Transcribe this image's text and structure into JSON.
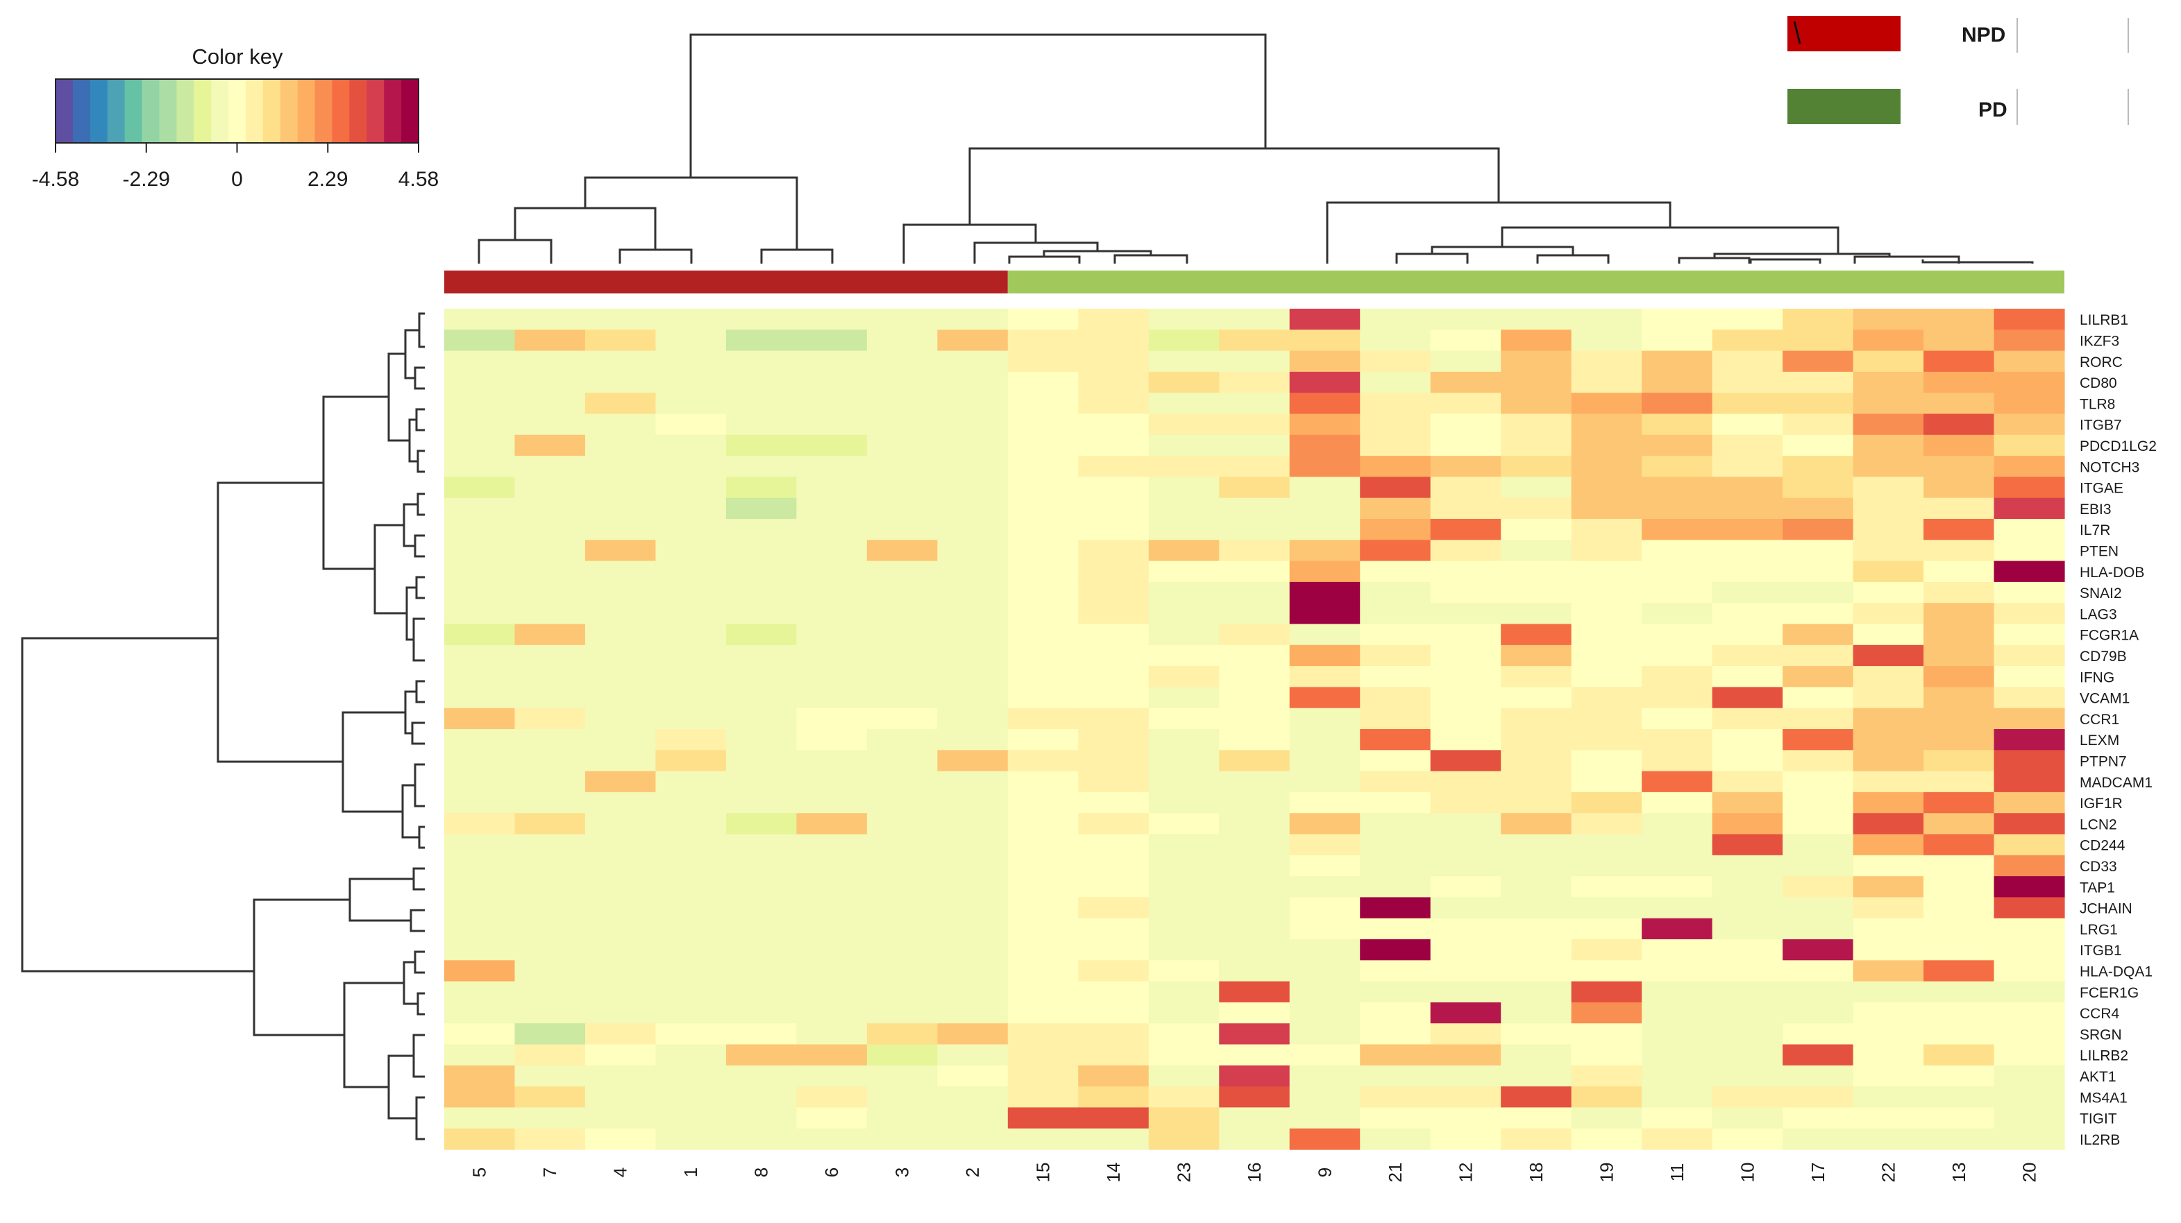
{
  "chart_data": {
    "type": "heatmap",
    "color_key": {
      "title": "Color key",
      "range": [
        -4.58,
        4.58
      ],
      "ticks": [
        "-4.58",
        "-2.29",
        "0",
        "2.29",
        "4.58"
      ],
      "palette": [
        "#5e4fa2",
        "#3d6db4",
        "#3288bd",
        "#4da3b4",
        "#66c2a5",
        "#94d4a4",
        "#abdda4",
        "#cbe9a0",
        "#e6f598",
        "#f3f9b7",
        "#ffffbf",
        "#fff1a8",
        "#fee08b",
        "#fdc675",
        "#fdae61",
        "#f98e52",
        "#f46d43",
        "#e4513f",
        "#d53e4f",
        "#b5174c",
        "#9e0142"
      ]
    },
    "groups": [
      {
        "name": "NPD",
        "color": "#c00000"
      },
      {
        "name": "PD",
        "color": "#548235"
      }
    ],
    "annotation_bar": {
      "npd_color": "#b22222",
      "pd_color": "#a0c85a",
      "npd_count": 8
    },
    "columns": [
      "5",
      "7",
      "4",
      "1",
      "8",
      "6",
      "3",
      "2",
      "15",
      "14",
      "23",
      "16",
      "9",
      "21",
      "12",
      "18",
      "19",
      "11",
      "10",
      "17",
      "22",
      "13",
      "20"
    ],
    "rows": [
      "LILRB1",
      "IKZF3",
      "RORC",
      "CD80",
      "TLR8",
      "ITGB7",
      "PDCD1LG2",
      "NOTCH3",
      "ITGAE",
      "EBI3",
      "IL7R",
      "PTEN",
      "HLA-DOB",
      "SNAI2",
      "LAG3",
      "FCGR1A",
      "CD79B",
      "IFNG",
      "VCAM1",
      "CCR1",
      "LEXM",
      "PTPN7",
      "MADCAM1",
      "IGF1R",
      "LCN2",
      "CD244",
      "CD33",
      "TAP1",
      "JCHAIN",
      "LRG1",
      "ITGB1",
      "HLA-DQA1",
      "FCER1G",
      "CCR4",
      "SRGN",
      "LILRB2",
      "AKT1",
      "MS4A1",
      "TIGIT",
      "IL2RB"
    ],
    "values": [
      [
        -0.6,
        -0.5,
        -0.5,
        -0.5,
        -0.5,
        -0.5,
        -0.5,
        -0.4,
        0.2,
        0.3,
        -0.3,
        -0.3,
        3.5,
        -0.6,
        -0.5,
        -0.5,
        -0.3,
        -0.2,
        -0.2,
        1.0,
        1.2,
        1.2,
        2.8
      ],
      [
        -1.5,
        1.2,
        0.9,
        -0.4,
        -1.5,
        -1.5,
        -0.5,
        1.4,
        0.6,
        0.4,
        -0.7,
        0.7,
        0.8,
        -0.3,
        -0.2,
        1.8,
        -0.5,
        0.2,
        1.1,
        1.0,
        2.0,
        1.5,
        2.2
      ],
      [
        -0.5,
        -0.6,
        -0.4,
        -0.5,
        -0.5,
        -0.5,
        -0.5,
        -0.3,
        0.4,
        0.3,
        -0.4,
        -0.3,
        1.2,
        0.5,
        -0.3,
        1.5,
        0.3,
        1.3,
        0.4,
        2.5,
        1.0,
        2.8,
        1.5
      ],
      [
        -0.6,
        -0.6,
        -0.4,
        -0.5,
        -0.5,
        -0.5,
        -0.5,
        -0.3,
        0.2,
        0.6,
        1.1,
        0.6,
        3.6,
        -0.5,
        1.2,
        1.2,
        0.5,
        1.4,
        0.6,
        0.4,
        1.5,
        1.8,
        2.0
      ],
      [
        -0.5,
        -0.6,
        0.9,
        -0.5,
        -0.6,
        -0.6,
        -0.5,
        -0.4,
        0.2,
        0.3,
        -0.3,
        -0.3,
        2.8,
        0.6,
        0.5,
        1.2,
        1.9,
        2.1,
        1.1,
        1.0,
        1.5,
        1.5,
        1.8
      ],
      [
        -0.6,
        -0.6,
        -0.5,
        0.2,
        -0.5,
        -0.5,
        -0.4,
        -0.4,
        0.1,
        0.2,
        0.6,
        0.5,
        1.8,
        0.4,
        0.2,
        0.6,
        1.4,
        1.0,
        0.2,
        0.3,
        2.5,
        3.0,
        1.2
      ],
      [
        -0.6,
        1.3,
        -0.4,
        -0.6,
        -0.7,
        -0.7,
        -0.6,
        -0.5,
        0.0,
        0.1,
        -0.4,
        -0.3,
        2.2,
        0.4,
        0.2,
        0.3,
        1.2,
        1.2,
        0.5,
        0.2,
        1.6,
        2.0,
        1.0
      ],
      [
        -0.6,
        -0.5,
        -0.5,
        -0.4,
        -0.6,
        -0.6,
        -0.6,
        -0.4,
        0.2,
        0.3,
        0.5,
        0.6,
        2.4,
        1.7,
        1.3,
        0.7,
        1.5,
        1.0,
        0.4,
        0.8,
        1.4,
        1.6,
        1.8
      ],
      [
        -0.8,
        -0.4,
        -0.5,
        -0.3,
        -0.8,
        -0.6,
        -0.6,
        -0.5,
        0.0,
        0.2,
        -0.3,
        0.8,
        -0.5,
        3.0,
        0.6,
        -0.3,
        1.6,
        1.3,
        1.2,
        0.7,
        0.4,
        1.2,
        2.6
      ],
      [
        -0.6,
        -0.6,
        -0.5,
        -0.5,
        -1.2,
        -0.5,
        -0.6,
        -0.4,
        0.0,
        0.2,
        -0.3,
        -0.3,
        -0.5,
        1.2,
        0.5,
        0.6,
        1.3,
        1.6,
        1.6,
        1.6,
        0.6,
        0.6,
        3.6
      ],
      [
        -0.4,
        -0.4,
        -0.5,
        -0.4,
        -0.6,
        -0.5,
        -0.5,
        -0.5,
        0.0,
        0.2,
        -0.3,
        -0.3,
        -0.4,
        2.0,
        2.9,
        0.2,
        0.3,
        2.0,
        1.7,
        2.1,
        0.6,
        2.8,
        0.2
      ],
      [
        -0.5,
        -0.5,
        1.6,
        -0.5,
        -0.5,
        -0.5,
        1.6,
        -0.4,
        0.0,
        0.4,
        1.2,
        0.5,
        1.6,
        2.8,
        0.6,
        -0.3,
        0.4,
        0.2,
        0.2,
        -0.2,
        0.5,
        0.4,
        -0.1
      ],
      [
        -0.4,
        -0.4,
        -0.4,
        -0.5,
        -0.5,
        -0.5,
        -0.5,
        -0.4,
        0.1,
        0.4,
        0.2,
        0.0,
        1.8,
        0.1,
        0.0,
        0.1,
        0.1,
        0.1,
        0.1,
        0.2,
        1.0,
        0.2,
        4.5
      ],
      [
        -0.5,
        -0.5,
        -0.5,
        -0.5,
        -0.5,
        -0.5,
        -0.3,
        -0.5,
        0.1,
        0.5,
        -0.3,
        -0.3,
        4.6,
        -0.3,
        -0.2,
        0.0,
        -0.2,
        -0.2,
        -0.3,
        -0.3,
        0.2,
        0.4,
        0.0
      ],
      [
        -0.6,
        -0.6,
        -0.5,
        -0.6,
        -0.6,
        -0.5,
        -0.6,
        -0.5,
        -0.1,
        0.3,
        -0.3,
        -0.4,
        4.6,
        -0.4,
        -0.3,
        -0.3,
        -0.2,
        -0.3,
        -0.2,
        0.2,
        0.3,
        1.2,
        0.4
      ],
      [
        -0.7,
        1.6,
        -0.5,
        -0.4,
        -1.0,
        -0.5,
        -0.4,
        -0.4,
        0.0,
        0.2,
        -0.3,
        0.5,
        -0.4,
        0.1,
        0.2,
        2.6,
        0.2,
        0.1,
        0.1,
        1.5,
        0.2,
        1.2,
        0.2
      ],
      [
        -0.4,
        -0.4,
        -0.4,
        -0.4,
        -0.4,
        -0.4,
        -0.3,
        -0.4,
        0.0,
        0.1,
        -0.2,
        -0.2,
        1.8,
        0.6,
        0.2,
        1.3,
        0.2,
        0.2,
        0.6,
        0.4,
        3.2,
        1.3,
        0.4
      ],
      [
        -0.3,
        -0.3,
        -0.3,
        -0.3,
        -0.4,
        -0.3,
        -0.3,
        -0.3,
        0.1,
        0.2,
        0.3,
        0.1,
        0.6,
        0.2,
        0.1,
        0.3,
        0.1,
        0.3,
        0.2,
        1.3,
        0.6,
        1.7,
        0.2
      ],
      [
        -0.5,
        -0.4,
        -0.4,
        -0.5,
        -0.5,
        -0.5,
        -0.3,
        -0.4,
        0.0,
        0.1,
        -0.3,
        -0.1,
        2.9,
        0.3,
        0.1,
        0.2,
        0.5,
        0.4,
        3.2,
        -0.2,
        0.3,
        1.2,
        0.6
      ],
      [
        1.6,
        0.6,
        -0.3,
        -0.3,
        -0.4,
        -0.2,
        -0.2,
        -0.3,
        0.3,
        0.3,
        0.1,
        0.0,
        -0.3,
        0.3,
        0.2,
        0.4,
        0.5,
        0.1,
        0.5,
        0.3,
        1.6,
        1.6,
        1.5
      ],
      [
        -0.3,
        -0.3,
        -0.4,
        0.3,
        -0.3,
        -0.2,
        -0.3,
        -0.3,
        0.2,
        0.5,
        -0.3,
        0.0,
        -0.4,
        2.8,
        0.2,
        0.4,
        0.3,
        0.5,
        0.2,
        2.6,
        1.6,
        1.4,
        4.0
      ],
      [
        -0.4,
        -0.4,
        -0.4,
        1.1,
        -0.4,
        -0.3,
        -0.4,
        1.5,
        0.6,
        0.5,
        -0.4,
        0.7,
        -0.3,
        0.1,
        3.0,
        0.3,
        0.2,
        0.3,
        0.2,
        0.3,
        1.2,
        0.7,
        3.2
      ],
      [
        -0.5,
        -0.5,
        1.5,
        -0.5,
        -0.5,
        -0.5,
        -0.6,
        -0.4,
        0.0,
        0.3,
        -0.4,
        -0.4,
        -0.4,
        0.3,
        0.3,
        0.6,
        0.2,
        2.8,
        0.4,
        0.2,
        0.4,
        0.3,
        3.4
      ],
      [
        -0.4,
        -0.4,
        -0.4,
        -0.4,
        -0.4,
        -0.4,
        -0.4,
        -0.4,
        0.1,
        0.2,
        -0.3,
        -0.3,
        0.0,
        0.2,
        0.3,
        0.4,
        1.0,
        0.2,
        1.4,
        0.2,
        1.8,
        2.8,
        1.4
      ],
      [
        0.5,
        0.8,
        -0.4,
        -0.3,
        -0.7,
        1.5,
        -0.4,
        -0.3,
        0.2,
        0.5,
        -0.2,
        -0.3,
        1.6,
        -0.4,
        -0.3,
        1.3,
        0.4,
        -0.3,
        1.8,
        0.2,
        3.0,
        1.3,
        3.2
      ],
      [
        -0.6,
        -0.6,
        -0.5,
        -0.5,
        -0.6,
        -0.4,
        -0.5,
        -0.5,
        0.0,
        0.2,
        -0.4,
        -0.3,
        0.6,
        -0.4,
        -0.5,
        -0.5,
        -0.4,
        -0.5,
        3.0,
        -0.4,
        1.8,
        2.8,
        0.7
      ],
      [
        -0.5,
        -0.4,
        -0.4,
        -0.4,
        -0.5,
        -0.5,
        -0.5,
        -0.4,
        0.1,
        0.2,
        -0.3,
        -0.3,
        0.0,
        -0.3,
        -0.3,
        -0.3,
        -0.3,
        -0.3,
        -0.3,
        -0.3,
        -0.2,
        0.1,
        2.2
      ],
      [
        -0.4,
        -0.4,
        -0.4,
        -0.4,
        -0.4,
        -0.4,
        -0.3,
        -0.4,
        0.0,
        0.1,
        -0.3,
        -0.3,
        -0.4,
        -0.3,
        -0.2,
        -0.3,
        0.2,
        -0.2,
        -0.3,
        0.4,
        1.2,
        0.1,
        4.6
      ],
      [
        -0.4,
        -0.4,
        -0.4,
        -0.5,
        -0.4,
        -0.4,
        -0.5,
        -0.4,
        0.1,
        0.3,
        -0.3,
        -0.3,
        0.2,
        4.4,
        -0.3,
        -0.4,
        -0.3,
        -0.3,
        -0.4,
        -0.3,
        0.6,
        0.1,
        3.2
      ],
      [
        -0.4,
        -0.4,
        -0.4,
        -0.4,
        -0.4,
        -0.4,
        -0.4,
        -0.4,
        0.0,
        0.1,
        -0.3,
        -0.3,
        0.2,
        0.2,
        -0.2,
        -0.2,
        -0.2,
        4.2,
        -0.3,
        -0.3,
        -0.2,
        -0.2,
        -0.2
      ],
      [
        -0.4,
        -0.4,
        -0.4,
        -0.4,
        -0.4,
        -0.4,
        -0.4,
        -0.4,
        0.0,
        0.1,
        -0.3,
        -0.3,
        -0.3,
        4.5,
        0.2,
        0.2,
        0.3,
        0.2,
        0.2,
        4.3,
        0.2,
        0.2,
        -0.2
      ],
      [
        1.7,
        -0.4,
        -0.4,
        -0.4,
        -0.4,
        -0.4,
        -0.3,
        -0.3,
        0.2,
        0.3,
        0.2,
        -0.3,
        -0.3,
        0.2,
        0.2,
        0.2,
        0.2,
        0.2,
        0.2,
        0.2,
        1.6,
        2.8,
        0.2
      ],
      [
        -0.5,
        -0.4,
        -0.4,
        -0.4,
        -0.5,
        -0.4,
        -0.4,
        -0.4,
        0.0,
        0.1,
        -0.3,
        3.1,
        -0.5,
        -0.4,
        -0.4,
        -0.3,
        3.0,
        -0.3,
        -0.4,
        -0.4,
        -0.4,
        -0.4,
        -0.3
      ],
      [
        -0.4,
        -0.4,
        -0.3,
        -0.4,
        -0.4,
        -0.3,
        -0.3,
        -0.4,
        0.0,
        0.1,
        -0.3,
        -0.2,
        -0.3,
        -0.2,
        4.2,
        -0.3,
        2.5,
        -0.3,
        -0.3,
        -0.3,
        -0.2,
        -0.2,
        -0.2
      ],
      [
        -0.2,
        -1.5,
        0.5,
        -0.2,
        -0.2,
        -0.3,
        0.8,
        1.2,
        0.6,
        0.4,
        0.2,
        3.6,
        -0.3,
        -0.2,
        0.4,
        -0.2,
        -0.2,
        -0.3,
        -0.3,
        0.2,
        -0.2,
        -0.2,
        -0.2
      ],
      [
        -0.3,
        0.5,
        -0.2,
        -0.3,
        1.6,
        1.6,
        -0.9,
        -0.3,
        0.6,
        0.4,
        -0.2,
        0.0,
        -0.2,
        1.2,
        1.3,
        -0.4,
        -0.2,
        -0.3,
        -0.6,
        3.0,
        -0.2,
        1.0,
        -0.2
      ],
      [
        1.6,
        -0.3,
        -0.3,
        -0.3,
        -0.4,
        -0.3,
        -0.4,
        -0.2,
        0.6,
        1.4,
        -0.3,
        3.6,
        -0.3,
        -0.4,
        -0.3,
        -0.3,
        0.6,
        -0.3,
        -0.3,
        -0.3,
        -0.2,
        0.2,
        -0.4
      ],
      [
        1.2,
        0.7,
        -0.3,
        -0.3,
        -0.3,
        0.4,
        -0.3,
        -0.3,
        0.4,
        1.0,
        0.5,
        3.2,
        -0.3,
        0.5,
        0.5,
        3.0,
        0.8,
        -0.3,
        0.4,
        0.3,
        -0.4,
        -0.3,
        -0.5
      ],
      [
        -0.3,
        -0.3,
        -0.4,
        -0.4,
        -0.3,
        -0.2,
        -0.3,
        -0.4,
        3.0,
        3.2,
        0.8,
        -0.3,
        -0.3,
        -0.2,
        -0.2,
        -0.2,
        -0.3,
        -0.2,
        -0.4,
        -0.2,
        -0.2,
        -0.2,
        -0.5
      ],
      [
        0.8,
        0.3,
        0.2,
        -0.4,
        -0.4,
        -0.3,
        -0.4,
        -0.4,
        -0.3,
        -0.4,
        1.0,
        -0.3,
        2.6,
        -0.3,
        0.2,
        0.3,
        0.2,
        0.3,
        0.2,
        -0.4,
        -0.4,
        -0.3,
        -0.3
      ]
    ],
    "col_dendrogram": "((((5,7),(4,1)),(8,6)),(((3,2),((15,14),(23,16))),(9,((21,12),(18,19)),((11,10),(17,22),(13,20)))))",
    "row_dendrogram": "hierarchical clustering of 40 genes"
  }
}
